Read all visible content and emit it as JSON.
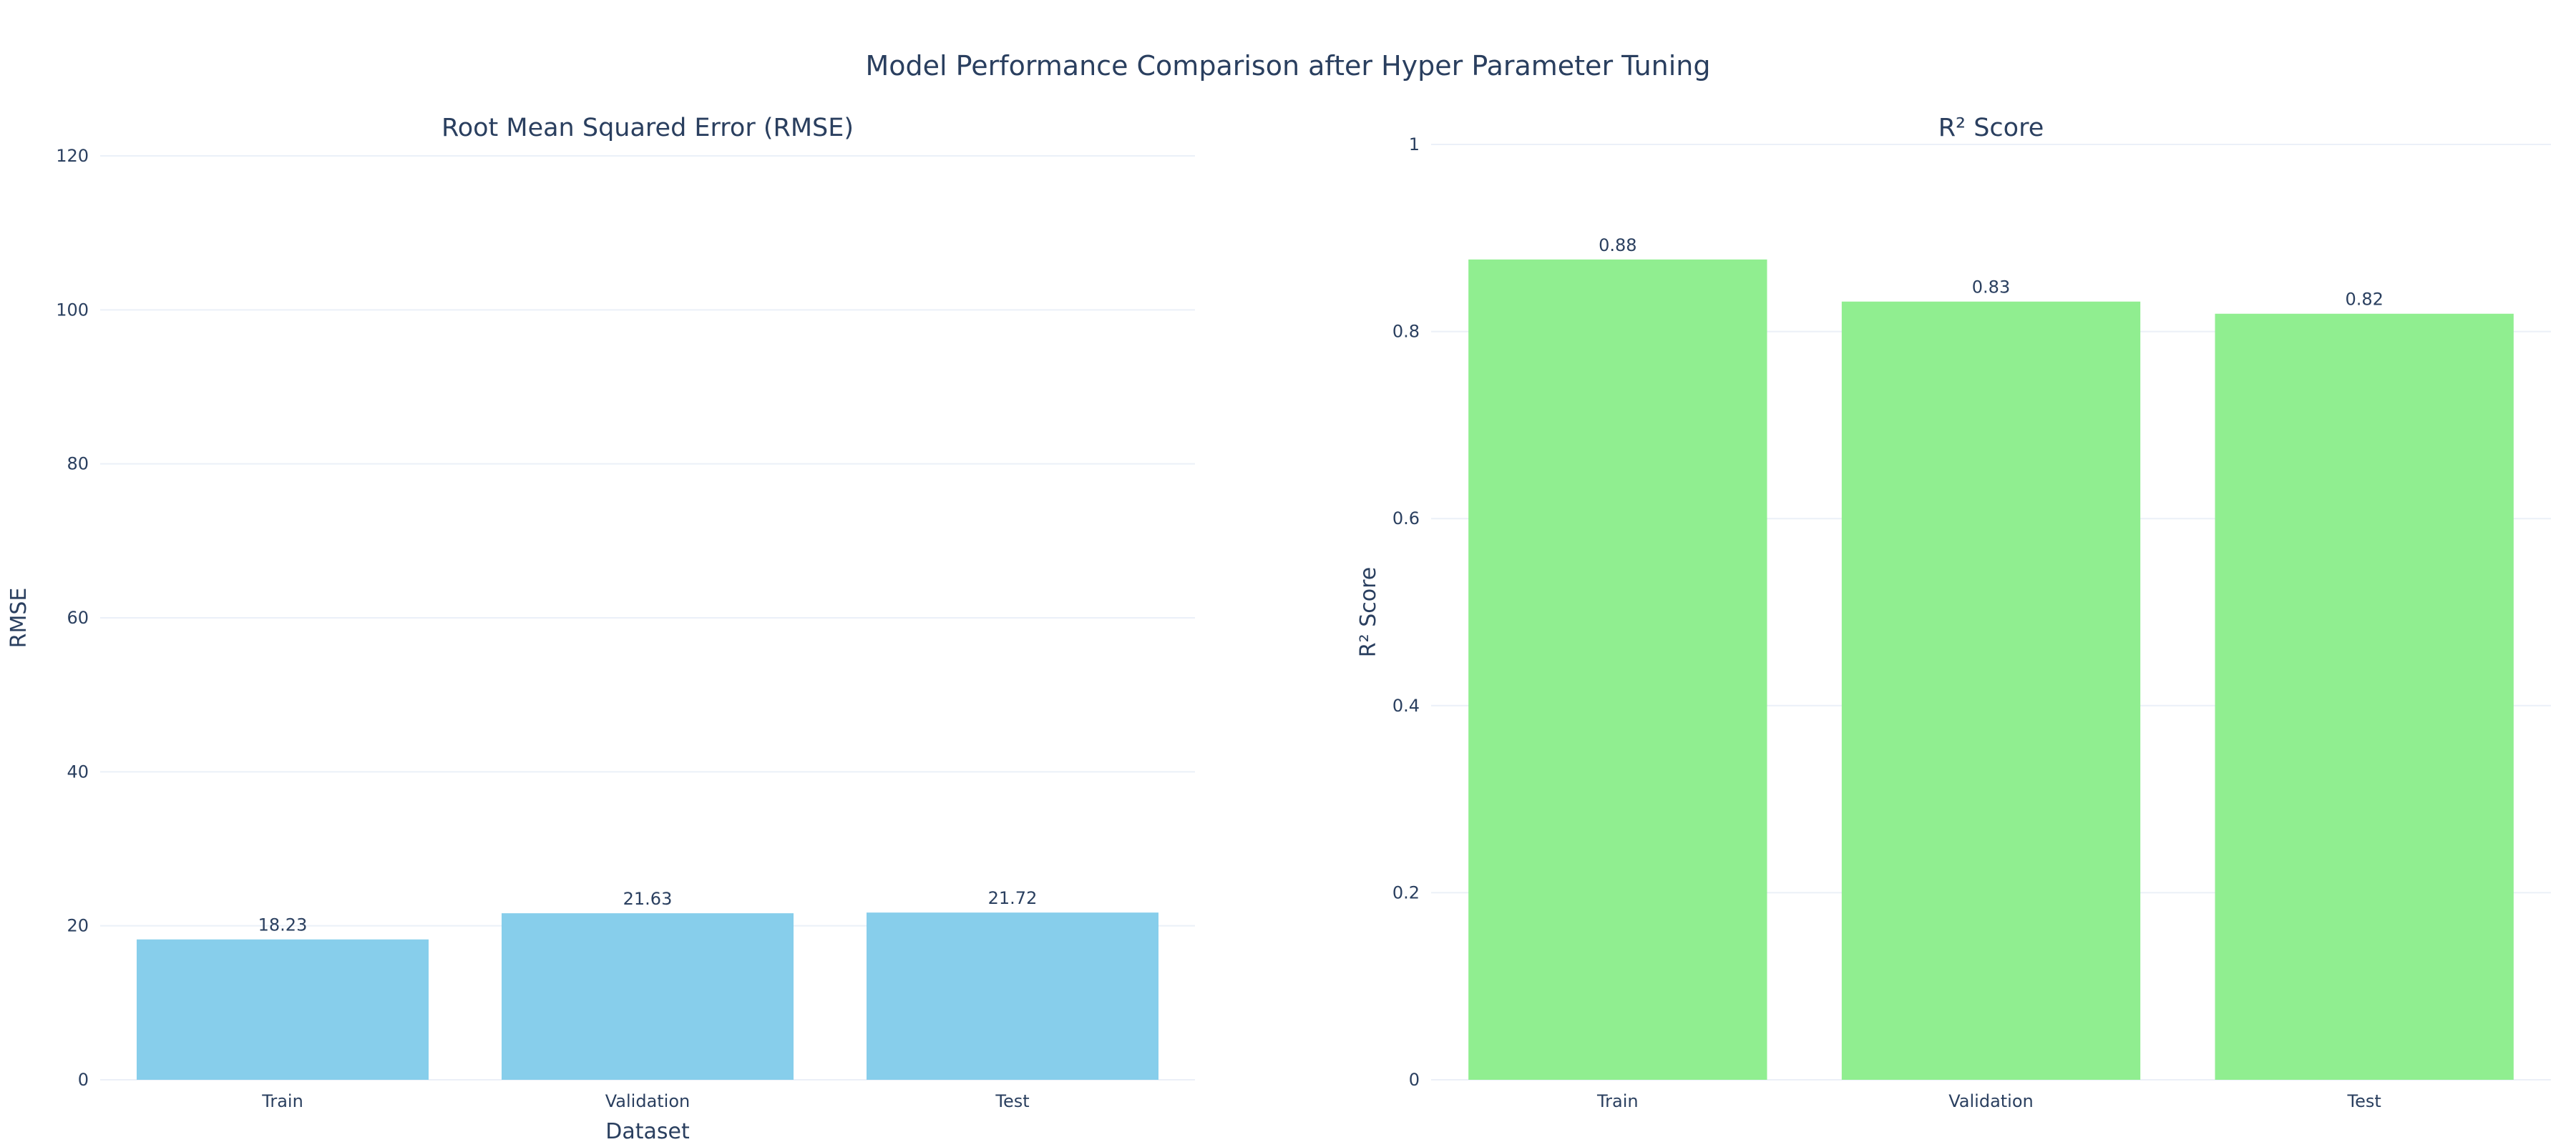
{
  "title": "Model Performance Comparison after Hyper Parameter Tuning",
  "chart_data": [
    {
      "type": "bar",
      "title": "Root Mean Squared Error (RMSE)",
      "xlabel": "Dataset",
      "ylabel": "RMSE",
      "categories": [
        "Train",
        "Validation",
        "Test"
      ],
      "values": [
        18.23,
        21.63,
        21.72
      ],
      "value_labels": [
        "18.23",
        "21.63",
        "21.72"
      ],
      "ylim": [
        0,
        120
      ],
      "yticks": [
        0,
        20,
        40,
        60,
        80,
        100,
        120
      ],
      "ytick_labels": [
        "0",
        "20",
        "40",
        "60",
        "80",
        "100",
        "120"
      ],
      "bar_color": "#87ceeb",
      "grid": true
    },
    {
      "type": "bar",
      "title": "R² Score",
      "xlabel": "",
      "ylabel": "R² Score",
      "categories": [
        "Train",
        "Validation",
        "Test"
      ],
      "values": [
        0.877,
        0.832,
        0.819
      ],
      "value_labels": [
        "0.88",
        "0.83",
        "0.82"
      ],
      "ylim": [
        0,
        1.0
      ],
      "yticks": [
        0,
        0.2,
        0.4,
        0.6,
        0.8,
        1.0
      ],
      "ytick_labels": [
        "0",
        "0.2",
        "0.4",
        "0.6",
        "0.8",
        "1"
      ],
      "bar_color": "#90ee90",
      "grid": true
    }
  ]
}
